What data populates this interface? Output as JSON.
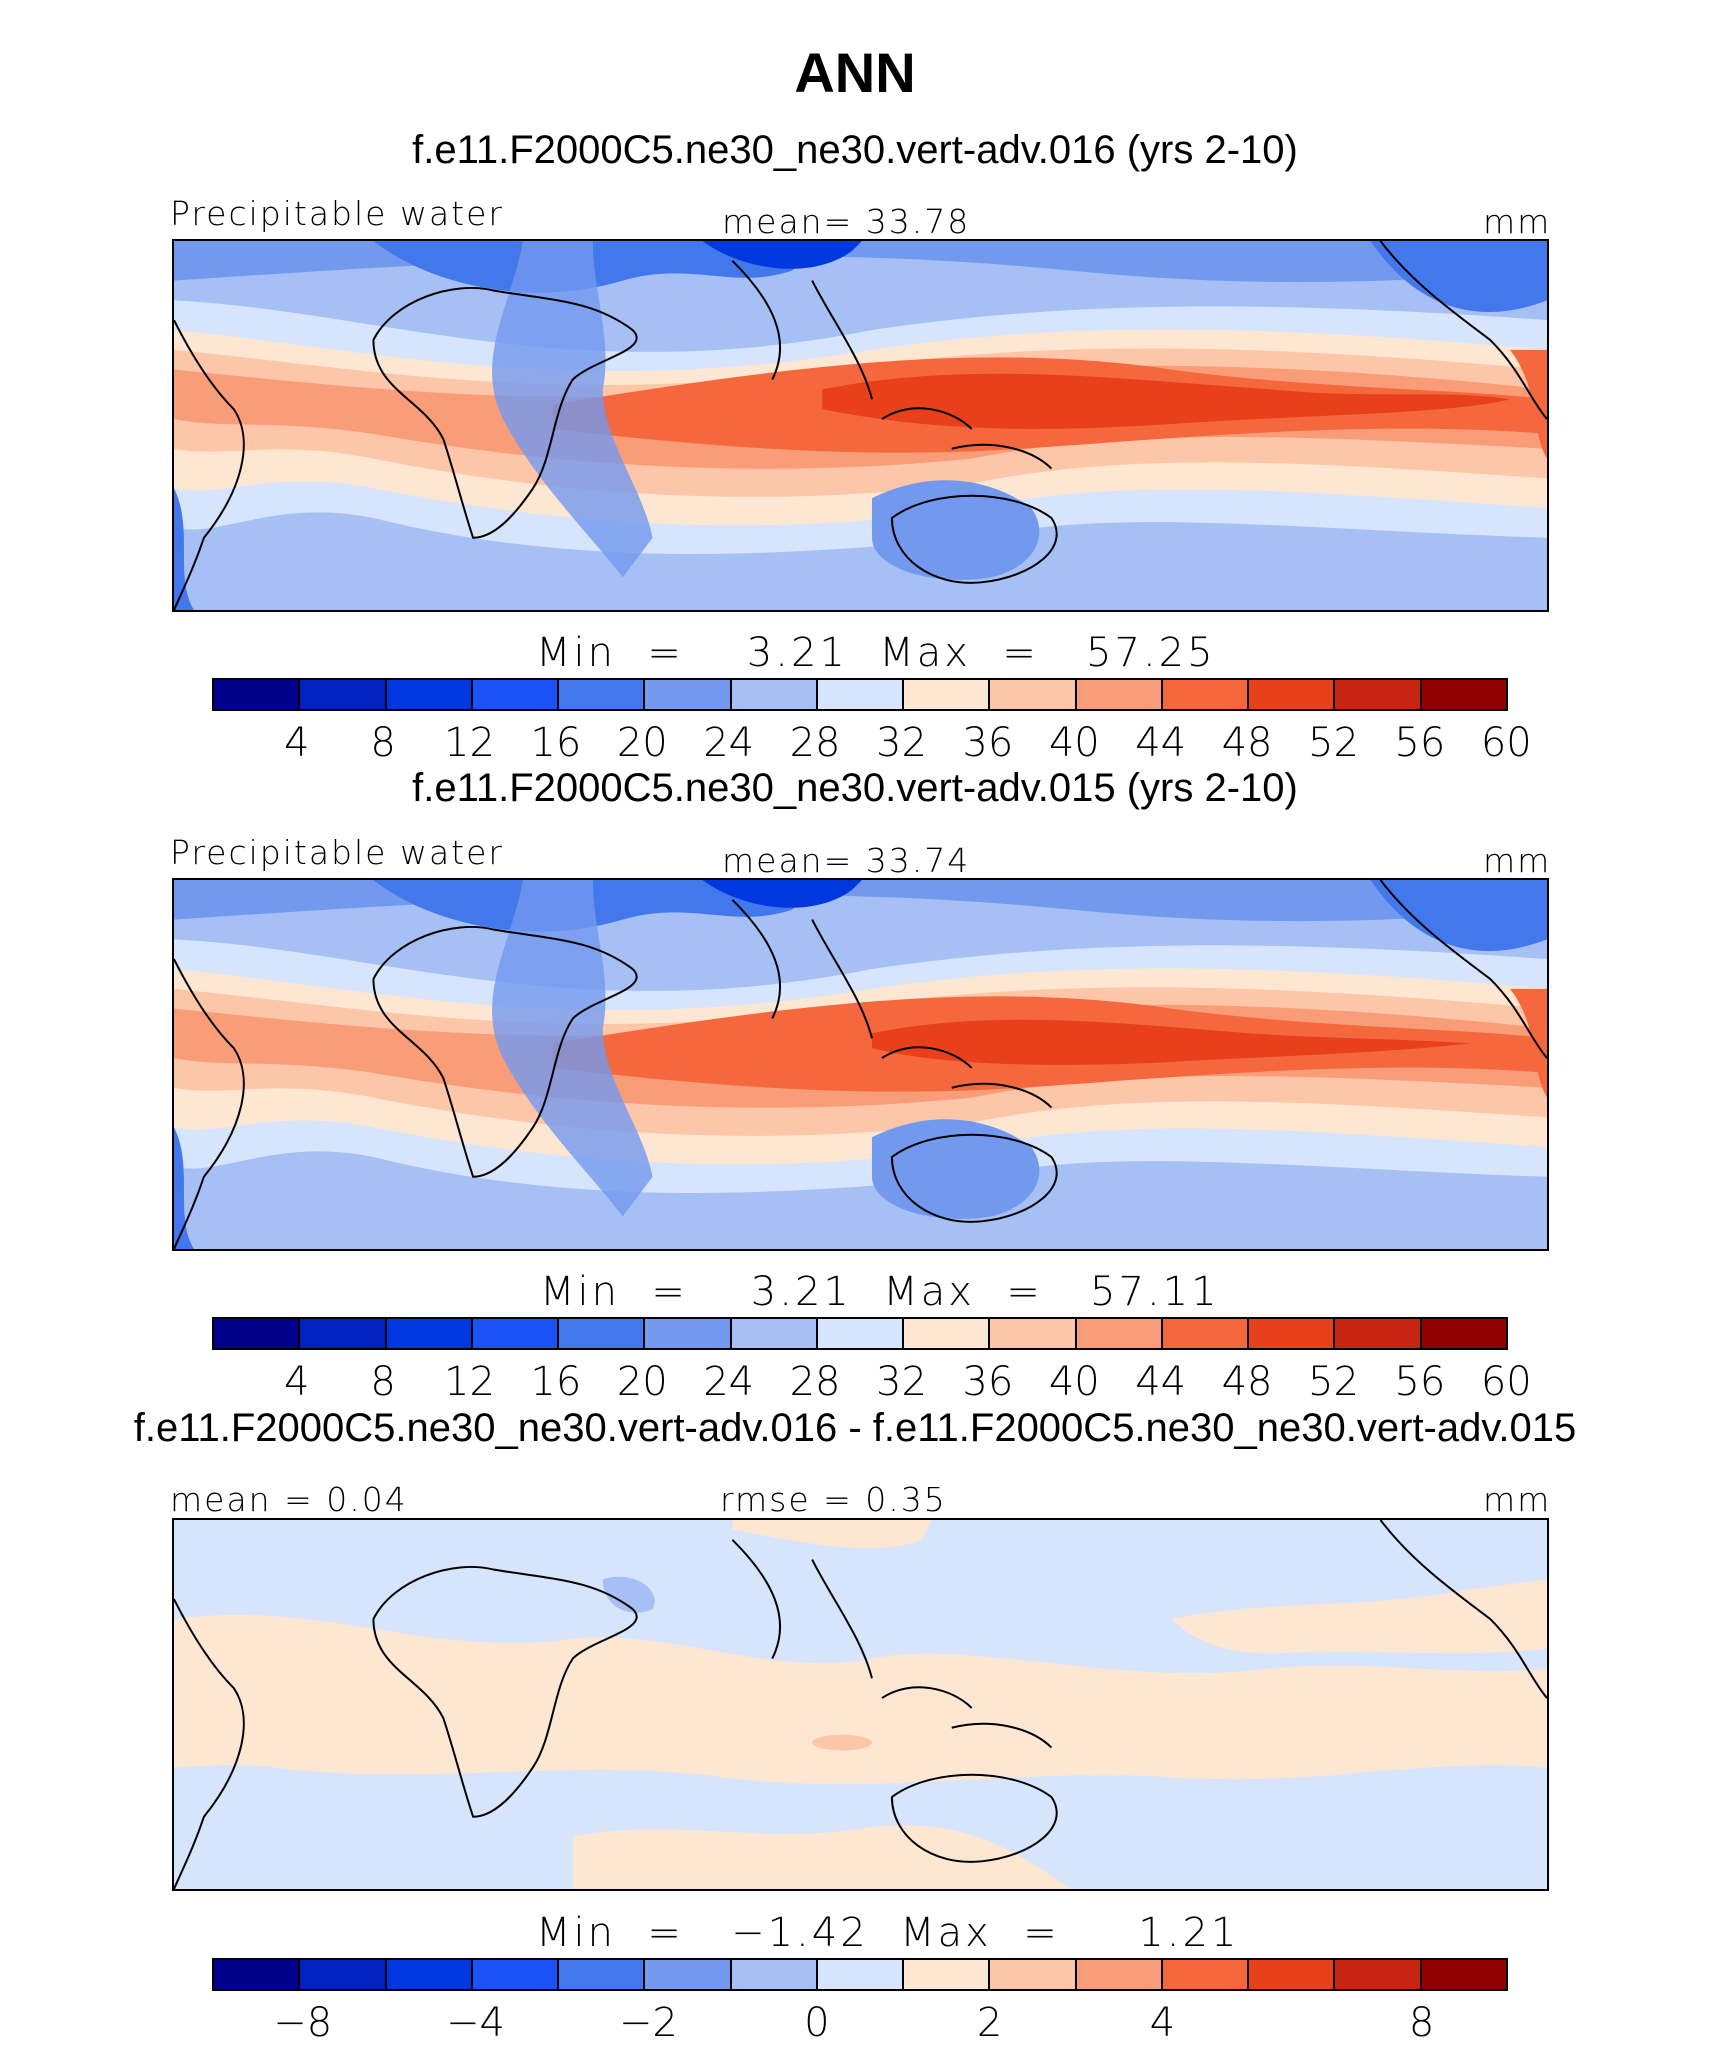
{
  "title": "ANN",
  "palette": [
    "#00008b",
    "#0022c0",
    "#0038df",
    "#1a52f5",
    "#4378ec",
    "#7399ef",
    "#a6c0f5",
    "#d6e5fb",
    "#fde6d2",
    "#fdc6a8",
    "#f99d78",
    "#f5683d",
    "#e8401a",
    "#c72511",
    "#900000"
  ],
  "panels": [
    {
      "subtitle": "f.e11.F2000C5.ne30_ne30.vert-adv.016 (yrs 2-10)",
      "left_label": "Precipitable water",
      "center_label": "mean=   33.78",
      "right_label": "mm",
      "minmax": "Min  =    3.21  Max  =   57.25",
      "ticks": [
        "4",
        "8",
        "12",
        "16",
        "20",
        "24",
        "28",
        "32",
        "36",
        "40",
        "44",
        "48",
        "52",
        "56",
        "60"
      ]
    },
    {
      "subtitle": "f.e11.F2000C5.ne30_ne30.vert-adv.015 (yrs 2-10)",
      "left_label": "Precipitable water",
      "center_label": "mean=   33.74",
      "right_label": "mm",
      "minmax": "Min  =    3.21  Max  =   57.11",
      "ticks": [
        "4",
        "8",
        "12",
        "16",
        "20",
        "24",
        "28",
        "32",
        "36",
        "40",
        "44",
        "48",
        "52",
        "56",
        "60"
      ]
    },
    {
      "subtitle": "f.e11.F2000C5.ne30_ne30.vert-adv.016 - f.e11.F2000C5.ne30_ne30.vert-adv.015",
      "left_label": "mean =    0.04",
      "center_label": "rmse =    0.35",
      "right_label": "mm",
      "minmax": "Min  =   −1.42  Max  =     1.21",
      "ticks": [
        "−8",
        "−4",
        "−2",
        "0",
        "2",
        "4",
        "8"
      ]
    }
  ]
}
